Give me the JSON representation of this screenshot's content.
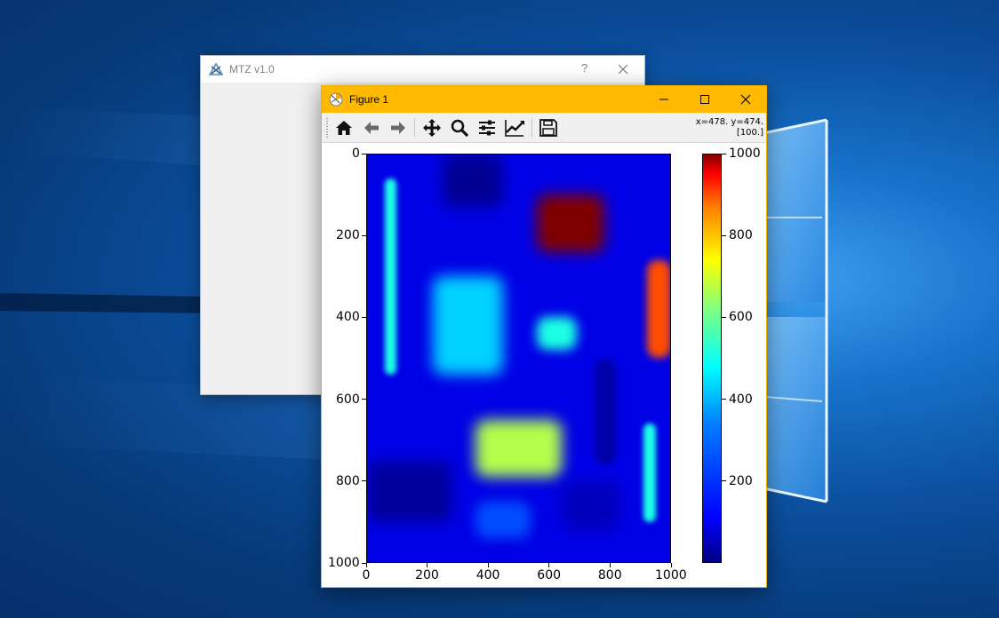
{
  "mtz_window": {
    "title": "MTZ v1.0",
    "help_label": "?",
    "icon": "mtz-app-icon",
    "close_icon": "close-icon"
  },
  "figure_window": {
    "title": "Figure 1",
    "icon": "matplotlib-icon",
    "controls": [
      "minimize-icon",
      "maximize-icon",
      "close-icon"
    ],
    "toolbar": {
      "tools": [
        "home-icon",
        "back-icon",
        "forward-icon",
        "pan-icon",
        "zoom-icon",
        "configure-subplots-icon",
        "edit-axes-icon",
        "save-icon"
      ],
      "coordinate_line1": "x=478. y=474.",
      "coordinate_line2": "[100.]"
    }
  },
  "chart_data": {
    "type": "heatmap",
    "title": "",
    "xlabel": "",
    "ylabel": "",
    "xlim": [
      0,
      1000
    ],
    "ylim": [
      1000,
      0
    ],
    "x_ticks": [
      "0",
      "200",
      "400",
      "600",
      "800",
      "1000"
    ],
    "y_ticks": [
      "0",
      "200",
      "400",
      "600",
      "800",
      "1000"
    ],
    "colormap": "jet",
    "colorbar": {
      "range": [
        0,
        1000
      ],
      "ticks": [
        "200",
        "400",
        "600",
        "800",
        "1000"
      ]
    },
    "background_value": 100,
    "regions": [
      {
        "x": [
          60,
          100
        ],
        "y": [
          60,
          540
        ],
        "value": 400
      },
      {
        "x": [
          250,
          450
        ],
        "y": [
          0,
          130
        ],
        "value": 20
      },
      {
        "x": [
          560,
          780
        ],
        "y": [
          100,
          240
        ],
        "value": 1000
      },
      {
        "x": [
          920,
          1000
        ],
        "y": [
          260,
          500
        ],
        "value": 800
      },
      {
        "x": [
          220,
          450
        ],
        "y": [
          300,
          540
        ],
        "value": 330
      },
      {
        "x": [
          560,
          690
        ],
        "y": [
          400,
          480
        ],
        "value": 400
      },
      {
        "x": [
          750,
          820
        ],
        "y": [
          500,
          760
        ],
        "value": 40
      },
      {
        "x": [
          360,
          640
        ],
        "y": [
          650,
          790
        ],
        "value": 550
      },
      {
        "x": [
          0,
          280
        ],
        "y": [
          750,
          900
        ],
        "value": 30
      },
      {
        "x": [
          360,
          540
        ],
        "y": [
          850,
          940
        ],
        "value": 200
      },
      {
        "x": [
          640,
          830
        ],
        "y": [
          800,
          920
        ],
        "value": 60
      },
      {
        "x": [
          910,
          950
        ],
        "y": [
          660,
          900
        ],
        "value": 400
      }
    ]
  }
}
